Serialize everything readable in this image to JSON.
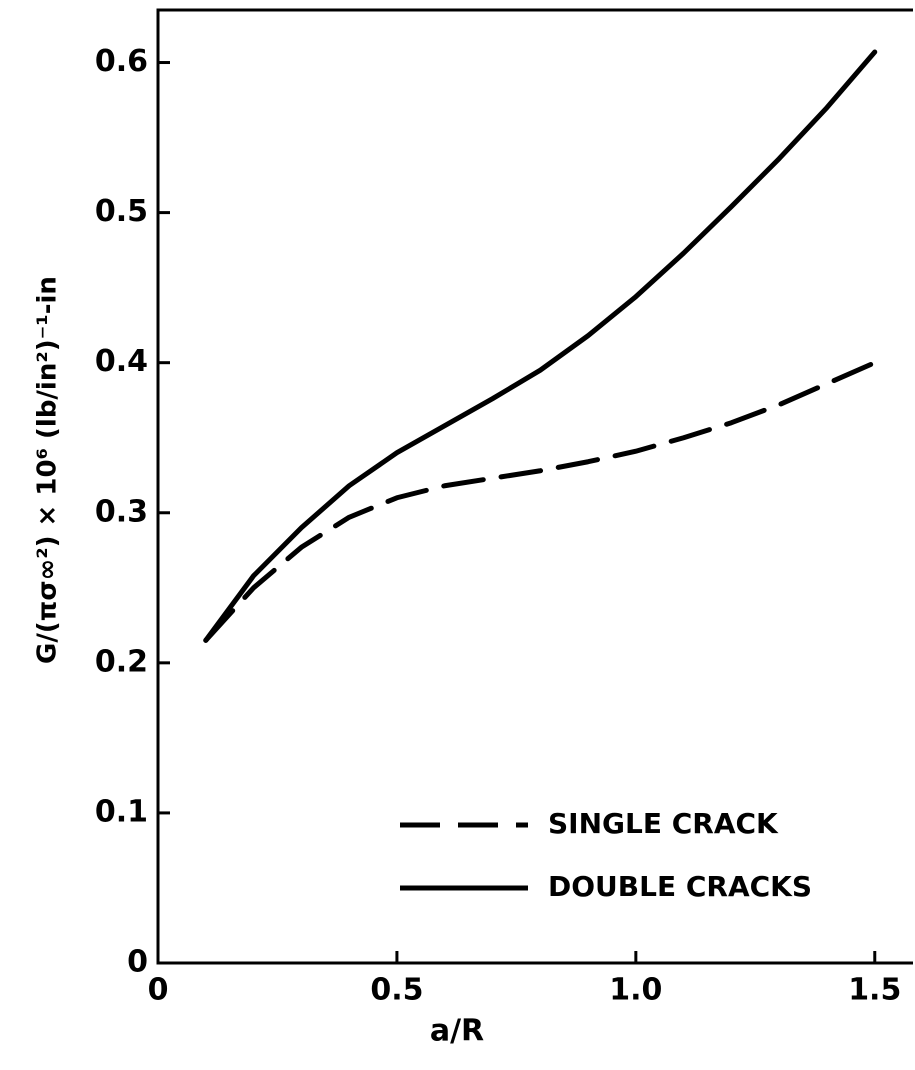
{
  "chart_data": {
    "type": "line",
    "xlabel": "a/R",
    "ylabel": "G/(πσ∞²) × 10⁶ (lb/in²)⁻¹-in",
    "x": [
      0.1,
      0.2,
      0.3,
      0.4,
      0.5,
      0.6,
      0.7,
      0.8,
      0.9,
      1.0,
      1.1,
      1.2,
      1.3,
      1.4,
      1.5
    ],
    "series": [
      {
        "name": "SINGLE CRACK",
        "color": "#000000",
        "style": "dashed",
        "values": [
          0.215,
          0.25,
          0.277,
          0.297,
          0.31,
          0.318,
          0.323,
          0.328,
          0.334,
          0.341,
          0.35,
          0.36,
          0.372,
          0.386,
          0.4
        ]
      },
      {
        "name": "DOUBLE CRACKS",
        "color": "#000000",
        "style": "solid",
        "values": [
          0.215,
          0.258,
          0.29,
          0.318,
          0.34,
          0.358,
          0.376,
          0.395,
          0.418,
          0.444,
          0.473,
          0.504,
          0.536,
          0.57,
          0.607
        ]
      }
    ],
    "xlim": [
      0,
      1.58
    ],
    "ylim": [
      0,
      0.635
    ],
    "xticks": [
      0,
      0.5,
      {
        "value": 1,
        "label": "1.0"
      },
      1.5
    ],
    "yticks": [
      0,
      0.1,
      0.2,
      0.3,
      0.4,
      0.5,
      0.6
    ],
    "grid": false,
    "legend": "lower right"
  }
}
